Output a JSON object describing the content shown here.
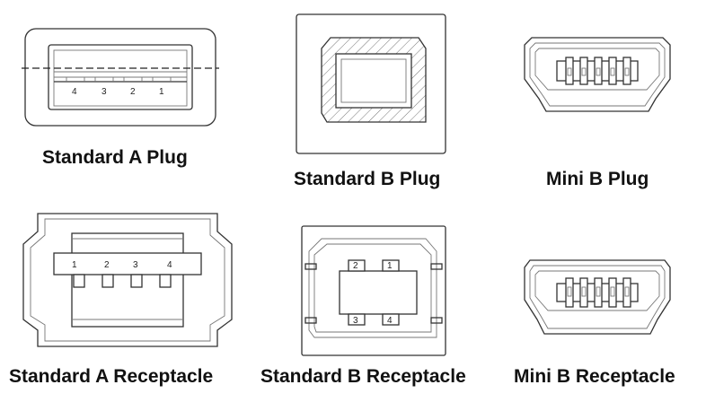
{
  "connectors": [
    {
      "id": "std-a-plug",
      "caption": "Standard A Plug",
      "pins": [
        "4",
        "3",
        "2",
        "1"
      ]
    },
    {
      "id": "std-b-plug",
      "caption": "Standard B Plug",
      "pins": []
    },
    {
      "id": "mini-b-plug",
      "caption": "Mini B Plug",
      "pins": []
    },
    {
      "id": "std-a-receptacle",
      "caption": "Standard A Receptacle",
      "pins": [
        "1",
        "2",
        "3",
        "4"
      ]
    },
    {
      "id": "std-b-receptacle",
      "caption": "Standard B Receptacle",
      "pins": [
        "2",
        "1",
        "3",
        "4"
      ]
    },
    {
      "id": "mini-b-receptacle",
      "caption": "Mini B Receptacle",
      "pins": []
    }
  ],
  "colors": {
    "line": "#333333",
    "hatch": "#777777",
    "text": "#111111"
  }
}
